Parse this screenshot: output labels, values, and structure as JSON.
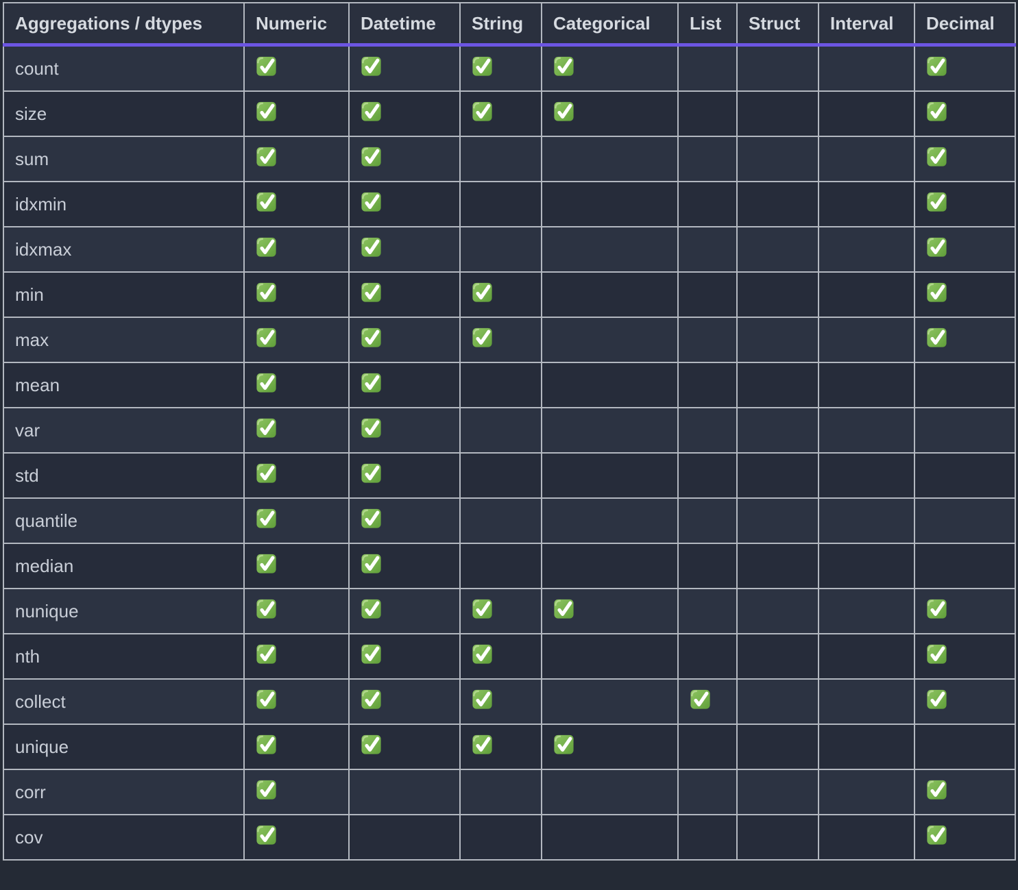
{
  "table": {
    "title": "Aggregations / dtypes",
    "columns": [
      "Aggregations / dtypes",
      "Numeric",
      "Datetime",
      "String",
      "Categorical",
      "List",
      "Struct",
      "Interval",
      "Decimal"
    ],
    "rows": [
      {
        "label": "count",
        "checks": [
          1,
          1,
          1,
          1,
          0,
          0,
          0,
          1
        ]
      },
      {
        "label": "size",
        "checks": [
          1,
          1,
          1,
          1,
          0,
          0,
          0,
          1
        ]
      },
      {
        "label": "sum",
        "checks": [
          1,
          1,
          0,
          0,
          0,
          0,
          0,
          1
        ]
      },
      {
        "label": "idxmin",
        "checks": [
          1,
          1,
          0,
          0,
          0,
          0,
          0,
          1
        ]
      },
      {
        "label": "idxmax",
        "checks": [
          1,
          1,
          0,
          0,
          0,
          0,
          0,
          1
        ]
      },
      {
        "label": "min",
        "checks": [
          1,
          1,
          1,
          0,
          0,
          0,
          0,
          1
        ]
      },
      {
        "label": "max",
        "checks": [
          1,
          1,
          1,
          0,
          0,
          0,
          0,
          1
        ]
      },
      {
        "label": "mean",
        "checks": [
          1,
          1,
          0,
          0,
          0,
          0,
          0,
          0
        ]
      },
      {
        "label": "var",
        "checks": [
          1,
          1,
          0,
          0,
          0,
          0,
          0,
          0
        ]
      },
      {
        "label": "std",
        "checks": [
          1,
          1,
          0,
          0,
          0,
          0,
          0,
          0
        ]
      },
      {
        "label": "quantile",
        "checks": [
          1,
          1,
          0,
          0,
          0,
          0,
          0,
          0
        ]
      },
      {
        "label": "median",
        "checks": [
          1,
          1,
          0,
          0,
          0,
          0,
          0,
          0
        ]
      },
      {
        "label": "nunique",
        "checks": [
          1,
          1,
          1,
          1,
          0,
          0,
          0,
          1
        ]
      },
      {
        "label": "nth",
        "checks": [
          1,
          1,
          1,
          0,
          0,
          0,
          0,
          1
        ]
      },
      {
        "label": "collect",
        "checks": [
          1,
          1,
          1,
          0,
          1,
          0,
          0,
          1
        ]
      },
      {
        "label": "unique",
        "checks": [
          1,
          1,
          1,
          1,
          0,
          0,
          0,
          0
        ]
      },
      {
        "label": "corr",
        "checks": [
          1,
          0,
          0,
          0,
          0,
          0,
          0,
          1
        ]
      },
      {
        "label": "cov",
        "checks": [
          1,
          0,
          0,
          0,
          0,
          0,
          0,
          1
        ]
      }
    ],
    "check_icon": "check-mark-icon",
    "colors": {
      "header_underline_accent": "#6c55e2",
      "check_green": "#74b04a",
      "row_background_light": "#2c3342",
      "row_background_dark": "#262c3a",
      "grid_border": "#b3b8c0"
    }
  }
}
